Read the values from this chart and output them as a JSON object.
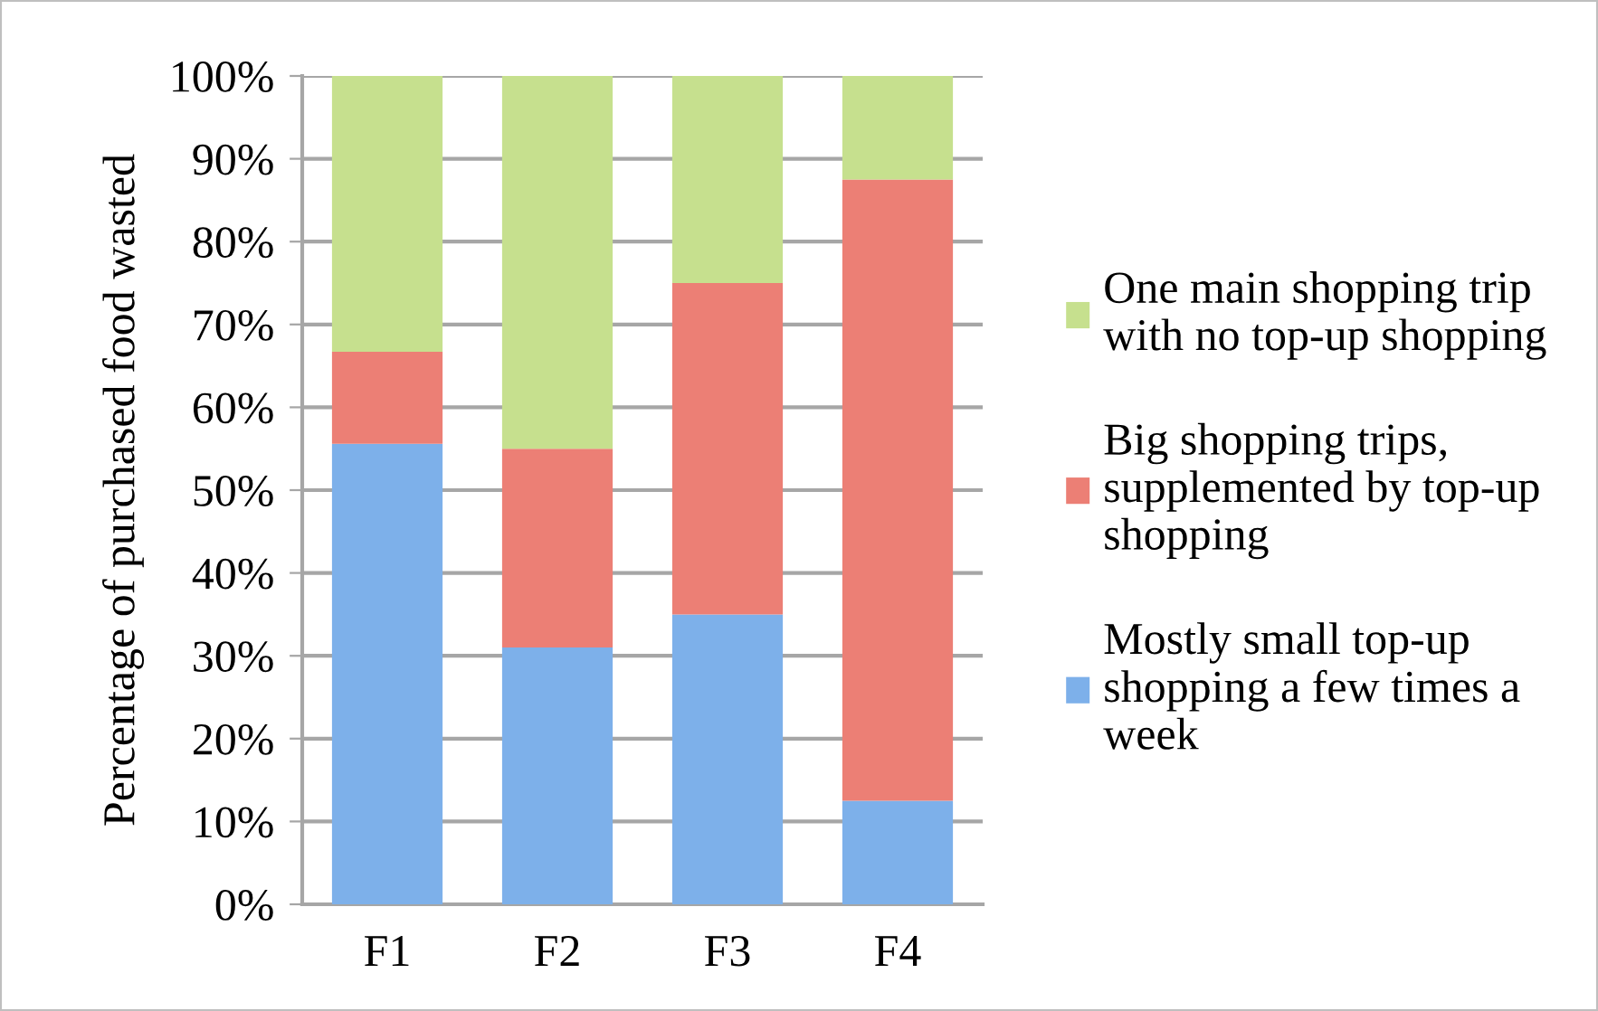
{
  "chart_data": {
    "type": "bar",
    "stacked": true,
    "ylabel": "Percentage of purchased food wasted",
    "categories": [
      "F1",
      "F2",
      "F3",
      "F4"
    ],
    "series": [
      {
        "name": "Mostly small top-up\nshopping a few times a\nweek",
        "color": "#7db0ea",
        "values": [
          55.6,
          31,
          35,
          12.5
        ]
      },
      {
        "name": "Big shopping trips,\nsupplemented by top-up\nshopping",
        "color": "#ec7f75",
        "values": [
          11.1,
          24,
          40,
          75
        ]
      },
      {
        "name": "One main shopping trip\nwith no top-up shopping",
        "color": "#c6e08e",
        "values": [
          33.3,
          45,
          25,
          12.5
        ]
      }
    ],
    "ylim": [
      0,
      100
    ],
    "yticks": [
      {
        "value": 0,
        "label": "0%"
      },
      {
        "value": 10,
        "label": "10%"
      },
      {
        "value": 20,
        "label": "20%"
      },
      {
        "value": 30,
        "label": "30%"
      },
      {
        "value": 40,
        "label": "40%"
      },
      {
        "value": 50,
        "label": "50%"
      },
      {
        "value": 60,
        "label": "60%"
      },
      {
        "value": 70,
        "label": "70%"
      },
      {
        "value": 80,
        "label": "80%"
      },
      {
        "value": 90,
        "label": "90%"
      },
      {
        "value": 100,
        "label": "100%"
      }
    ],
    "grid": "y",
    "legend": "right"
  }
}
